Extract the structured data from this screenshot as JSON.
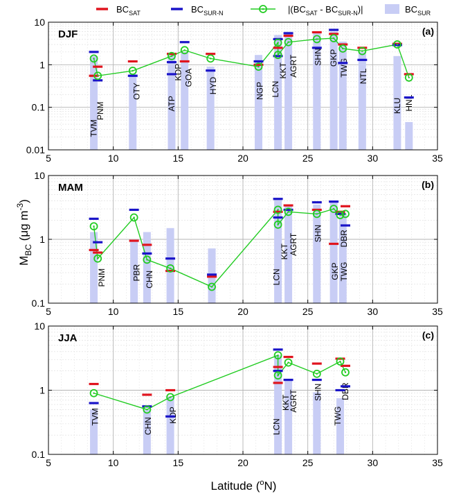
{
  "legend": {
    "sat_main": "BC",
    "sat_sub": "SAT",
    "surn_main": "BC",
    "surn_sub": "SUR-N",
    "diff_label": "|(BC",
    "diff_sub1": "SAT",
    "diff_mid": " - BC",
    "diff_sub2": "SUR-N",
    "diff_end": ")|",
    "sur_main": "BC",
    "sur_sub": "SUR"
  },
  "axes": {
    "ylabel_main": "M",
    "ylabel_sub": "BC",
    "ylabel_unit": " (μg m",
    "ylabel_exp": "-3",
    "ylabel_close": ")",
    "xlabel_main": "Latitude (",
    "xlabel_sup": "o",
    "xlabel_end": "N)"
  },
  "colors": {
    "sat": "#e0141e",
    "surn": "#1a14c8",
    "diff": "#22cc22",
    "sur_bar": "#c8cdf5",
    "grid": "#b4b4b4"
  },
  "chart_data": [
    {
      "type": "bar",
      "panel": "DJF",
      "letter": "(a)",
      "xlim": [
        5,
        35
      ],
      "ylim": [
        0.01,
        10
      ],
      "yscale": "log",
      "xticks": [
        5,
        10,
        15,
        20,
        25,
        30,
        35
      ],
      "yticks": [
        0.01,
        0.1,
        1,
        10
      ],
      "ytick_labels": [
        "0.01",
        "0.1",
        "1",
        "10"
      ],
      "sur_bars": [
        {
          "x": 8.5,
          "v": 1.6
        },
        {
          "x": 11.5,
          "v": 0.6
        },
        {
          "x": 14.5,
          "v": 1.8
        },
        {
          "x": 15.5,
          "v": 2.0
        },
        {
          "x": 17.5,
          "v": 0.9
        },
        {
          "x": 21.2,
          "v": 1.7
        },
        {
          "x": 22.7,
          "v": 5.0
        },
        {
          "x": 23.5,
          "v": 6.0
        },
        {
          "x": 25.7,
          "v": 6.0
        },
        {
          "x": 27.0,
          "v": 6.0
        },
        {
          "x": 27.7,
          "v": 3.5
        },
        {
          "x": 29.2,
          "v": 2.0
        },
        {
          "x": 31.9,
          "v": 1.6
        },
        {
          "x": 32.8,
          "v": 0.045
        }
      ],
      "sat": [
        {
          "x": 8.5,
          "v": 0.55
        },
        {
          "x": 8.8,
          "v": 0.9
        },
        {
          "x": 11.5,
          "v": 1.2
        },
        {
          "x": 14.5,
          "v": 1.8
        },
        {
          "x": 15.5,
          "v": 1.2
        },
        {
          "x": 17.5,
          "v": 1.8
        },
        {
          "x": 21.2,
          "v": 1.0
        },
        {
          "x": 22.7,
          "v": 2.5
        },
        {
          "x": 23.5,
          "v": 4.8
        },
        {
          "x": 25.7,
          "v": 5.8
        },
        {
          "x": 27.0,
          "v": 5.3
        },
        {
          "x": 27.7,
          "v": 3.0
        },
        {
          "x": 29.2,
          "v": 2.5
        },
        {
          "x": 31.9,
          "v": 3.1
        },
        {
          "x": 32.8,
          "v": 0.6
        }
      ],
      "surn": [
        {
          "x": 8.5,
          "v": 2.0
        },
        {
          "x": 8.8,
          "v": 0.43
        },
        {
          "x": 11.5,
          "v": 0.55
        },
        {
          "x": 14.5,
          "v": 0.6
        },
        {
          "x": 14.5,
          "v": 1.15
        },
        {
          "x": 15.5,
          "v": 3.4
        },
        {
          "x": 17.5,
          "v": 0.73
        },
        {
          "x": 21.2,
          "v": 1.2
        },
        {
          "x": 22.7,
          "v": 4.0
        },
        {
          "x": 22.7,
          "v": 1.6
        },
        {
          "x": 23.5,
          "v": 5.5
        },
        {
          "x": 25.7,
          "v": 2.5
        },
        {
          "x": 27.0,
          "v": 6.6
        },
        {
          "x": 27.7,
          "v": 1.1
        },
        {
          "x": 29.2,
          "v": 1.3
        },
        {
          "x": 31.9,
          "v": 2.9
        },
        {
          "x": 32.8,
          "v": 0.17
        }
      ],
      "diff": [
        {
          "x": 8.5,
          "v": 1.4
        },
        {
          "x": 8.8,
          "v": 0.55
        },
        {
          "x": 11.5,
          "v": 0.72
        },
        {
          "x": 14.5,
          "v": 1.6
        },
        {
          "x": 15.5,
          "v": 2.2
        },
        {
          "x": 17.5,
          "v": 1.4
        },
        {
          "x": 21.2,
          "v": 0.9
        },
        {
          "x": 22.7,
          "v": 3.3
        },
        {
          "x": 22.7,
          "v": 1.7
        },
        {
          "x": 23.5,
          "v": 3.4
        },
        {
          "x": 25.7,
          "v": 4.0
        },
        {
          "x": 27.0,
          "v": 4.2
        },
        {
          "x": 27.7,
          "v": 2.4
        },
        {
          "x": 29.2,
          "v": 2.1
        },
        {
          "x": 31.9,
          "v": 3.0
        },
        {
          "x": 32.8,
          "v": 0.5
        }
      ],
      "stations": [
        {
          "x": 8.5,
          "label": "TVM",
          "y": 0.02
        },
        {
          "x": 9.0,
          "label": "PNM",
          "y": 0.05
        },
        {
          "x": 11.8,
          "label": "OTY",
          "y": 0.15
        },
        {
          "x": 14.5,
          "label": "ATP",
          "y": 0.08
        },
        {
          "x": 15.0,
          "label": "KDP",
          "y": 0.42
        },
        {
          "x": 15.8,
          "label": "GOA",
          "y": 0.3
        },
        {
          "x": 17.7,
          "label": "HYD",
          "y": 0.2
        },
        {
          "x": 21.3,
          "label": "NGP",
          "y": 0.15
        },
        {
          "x": 22.5,
          "label": "LCN",
          "y": 0.17
        },
        {
          "x": 23.1,
          "label": "KKT",
          "y": 0.47
        },
        {
          "x": 23.9,
          "label": "AGRT",
          "y": 0.5
        },
        {
          "x": 25.8,
          "label": "SHN",
          "y": 0.95
        },
        {
          "x": 27.0,
          "label": "GKP",
          "y": 0.9
        },
        {
          "x": 27.8,
          "label": "TWG",
          "y": 0.5
        },
        {
          "x": 29.3,
          "label": "NTL",
          "y": 0.35
        },
        {
          "x": 31.9,
          "label": "KLU",
          "y": 0.07
        },
        {
          "x": 32.8,
          "label": "HNL",
          "y": 0.08
        }
      ]
    },
    {
      "type": "bar",
      "panel": "MAM",
      "letter": "(b)",
      "xlim": [
        5,
        35
      ],
      "ylim": [
        0.1,
        10
      ],
      "yscale": "log",
      "xticks": [
        5,
        10,
        15,
        20,
        25,
        30,
        35
      ],
      "yticks": [
        0.1,
        1,
        10
      ],
      "ytick_labels": [
        "0.1",
        "1",
        "10"
      ],
      "sur_bars": [
        {
          "x": 8.5,
          "v": 1.3
        },
        {
          "x": 11.6,
          "v": 1.0
        },
        {
          "x": 12.6,
          "v": 1.3
        },
        {
          "x": 14.4,
          "v": 1.5
        },
        {
          "x": 17.6,
          "v": 0.72
        },
        {
          "x": 22.7,
          "v": 4.2
        },
        {
          "x": 23.5,
          "v": 3.3
        },
        {
          "x": 25.7,
          "v": 3.5
        },
        {
          "x": 27.0,
          "v": 3.8
        },
        {
          "x": 27.7,
          "v": 2.5
        }
      ],
      "sat": [
        {
          "x": 8.5,
          "v": 0.68
        },
        {
          "x": 8.8,
          "v": 0.62
        },
        {
          "x": 11.6,
          "v": 0.95
        },
        {
          "x": 12.6,
          "v": 0.82
        },
        {
          "x": 14.4,
          "v": 0.32
        },
        {
          "x": 17.6,
          "v": 0.26
        },
        {
          "x": 22.7,
          "v": 2.7
        },
        {
          "x": 23.5,
          "v": 3.4
        },
        {
          "x": 25.7,
          "v": 2.9
        },
        {
          "x": 27.0,
          "v": 0.85
        },
        {
          "x": 27.5,
          "v": 2.7
        },
        {
          "x": 27.9,
          "v": 3.3
        }
      ],
      "surn": [
        {
          "x": 8.5,
          "v": 2.1
        },
        {
          "x": 8.8,
          "v": 0.9
        },
        {
          "x": 11.6,
          "v": 2.9
        },
        {
          "x": 12.6,
          "v": 0.6
        },
        {
          "x": 14.4,
          "v": 0.5
        },
        {
          "x": 17.6,
          "v": 0.28
        },
        {
          "x": 22.7,
          "v": 4.3
        },
        {
          "x": 22.7,
          "v": 2.2
        },
        {
          "x": 23.5,
          "v": 2.9
        },
        {
          "x": 25.7,
          "v": 3.8
        },
        {
          "x": 27.0,
          "v": 3.9
        },
        {
          "x": 27.5,
          "v": 2.5
        },
        {
          "x": 27.9,
          "v": 1.65
        }
      ],
      "diff": [
        {
          "x": 8.5,
          "v": 1.6
        },
        {
          "x": 8.8,
          "v": 0.5
        },
        {
          "x": 11.6,
          "v": 2.2
        },
        {
          "x": 12.6,
          "v": 0.48
        },
        {
          "x": 14.4,
          "v": 0.35
        },
        {
          "x": 17.6,
          "v": 0.18
        },
        {
          "x": 22.7,
          "v": 2.9
        },
        {
          "x": 22.7,
          "v": 1.7
        },
        {
          "x": 23.5,
          "v": 2.7
        },
        {
          "x": 25.7,
          "v": 2.5
        },
        {
          "x": 27.0,
          "v": 3.0
        },
        {
          "x": 27.5,
          "v": 2.4
        },
        {
          "x": 27.9,
          "v": 2.5
        }
      ],
      "stations": [
        {
          "x": 9.1,
          "label": "PNM",
          "y": 0.18
        },
        {
          "x": 11.8,
          "label": "PBR",
          "y": 0.22
        },
        {
          "x": 12.8,
          "label": "CHN",
          "y": 0.17
        },
        {
          "x": 22.6,
          "label": "LCN",
          "y": 0.19
        },
        {
          "x": 23.2,
          "label": "KKT",
          "y": 0.48
        },
        {
          "x": 23.9,
          "label": "AGRT",
          "y": 0.55
        },
        {
          "x": 25.8,
          "label": "SHN",
          "y": 0.9
        },
        {
          "x": 27.1,
          "label": "GKP",
          "y": 0.23
        },
        {
          "x": 27.8,
          "label": "DBR",
          "y": 0.75
        },
        {
          "x": 27.8,
          "label": "TWG",
          "y": 0.22
        }
      ]
    },
    {
      "type": "bar",
      "panel": "JJA",
      "letter": "(c)",
      "xlim": [
        5,
        35
      ],
      "ylim": [
        0.1,
        10
      ],
      "yscale": "log",
      "xticks": [
        5,
        10,
        15,
        20,
        25,
        30,
        35
      ],
      "yticks": [
        0.1,
        1,
        10
      ],
      "ytick_labels": [
        "0.1",
        "1",
        "10"
      ],
      "sur_bars": [
        {
          "x": 8.5,
          "v": 0.5
        },
        {
          "x": 12.6,
          "v": 0.5
        },
        {
          "x": 14.4,
          "v": 0.8
        },
        {
          "x": 22.7,
          "v": 3.5
        },
        {
          "x": 23.5,
          "v": 1.4
        },
        {
          "x": 25.7,
          "v": 0.93
        },
        {
          "x": 27.5,
          "v": 0.75
        }
      ],
      "sat": [
        {
          "x": 8.5,
          "v": 1.25
        },
        {
          "x": 12.6,
          "v": 0.85
        },
        {
          "x": 14.4,
          "v": 1.0
        },
        {
          "x": 22.7,
          "v": 2.3
        },
        {
          "x": 22.7,
          "v": 1.3
        },
        {
          "x": 23.5,
          "v": 3.3
        },
        {
          "x": 25.7,
          "v": 2.6
        },
        {
          "x": 27.5,
          "v": 3.1
        },
        {
          "x": 27.9,
          "v": 2.4
        }
      ],
      "surn": [
        {
          "x": 8.5,
          "v": 0.63
        },
        {
          "x": 12.6,
          "v": 0.56
        },
        {
          "x": 14.4,
          "v": 0.39
        },
        {
          "x": 22.7,
          "v": 4.3
        },
        {
          "x": 22.7,
          "v": 2.0
        },
        {
          "x": 23.5,
          "v": 1.45
        },
        {
          "x": 25.7,
          "v": 1.45
        },
        {
          "x": 27.5,
          "v": 1.0
        },
        {
          "x": 27.9,
          "v": 1.15
        }
      ],
      "diff": [
        {
          "x": 8.5,
          "v": 0.9
        },
        {
          "x": 12.6,
          "v": 0.5
        },
        {
          "x": 14.4,
          "v": 0.78
        },
        {
          "x": 22.7,
          "v": 3.5
        },
        {
          "x": 22.7,
          "v": 1.7
        },
        {
          "x": 23.5,
          "v": 2.7
        },
        {
          "x": 25.7,
          "v": 1.8
        },
        {
          "x": 27.5,
          "v": 2.8
        },
        {
          "x": 27.9,
          "v": 1.9
        }
      ],
      "stations": [
        {
          "x": 8.6,
          "label": "TVM",
          "y": 0.28
        },
        {
          "x": 12.7,
          "label": "CHN",
          "y": 0.2
        },
        {
          "x": 14.6,
          "label": "KDP",
          "y": 0.3
        },
        {
          "x": 22.6,
          "label": "LCN",
          "y": 0.2
        },
        {
          "x": 23.3,
          "label": "KKT",
          "y": 0.48
        },
        {
          "x": 23.9,
          "label": "AGRT",
          "y": 0.45
        },
        {
          "x": 25.8,
          "label": "SHN",
          "y": 0.68
        },
        {
          "x": 27.3,
          "label": "TWG",
          "y": 0.28
        },
        {
          "x": 27.9,
          "label": "DBR",
          "y": 0.7
        }
      ]
    }
  ]
}
